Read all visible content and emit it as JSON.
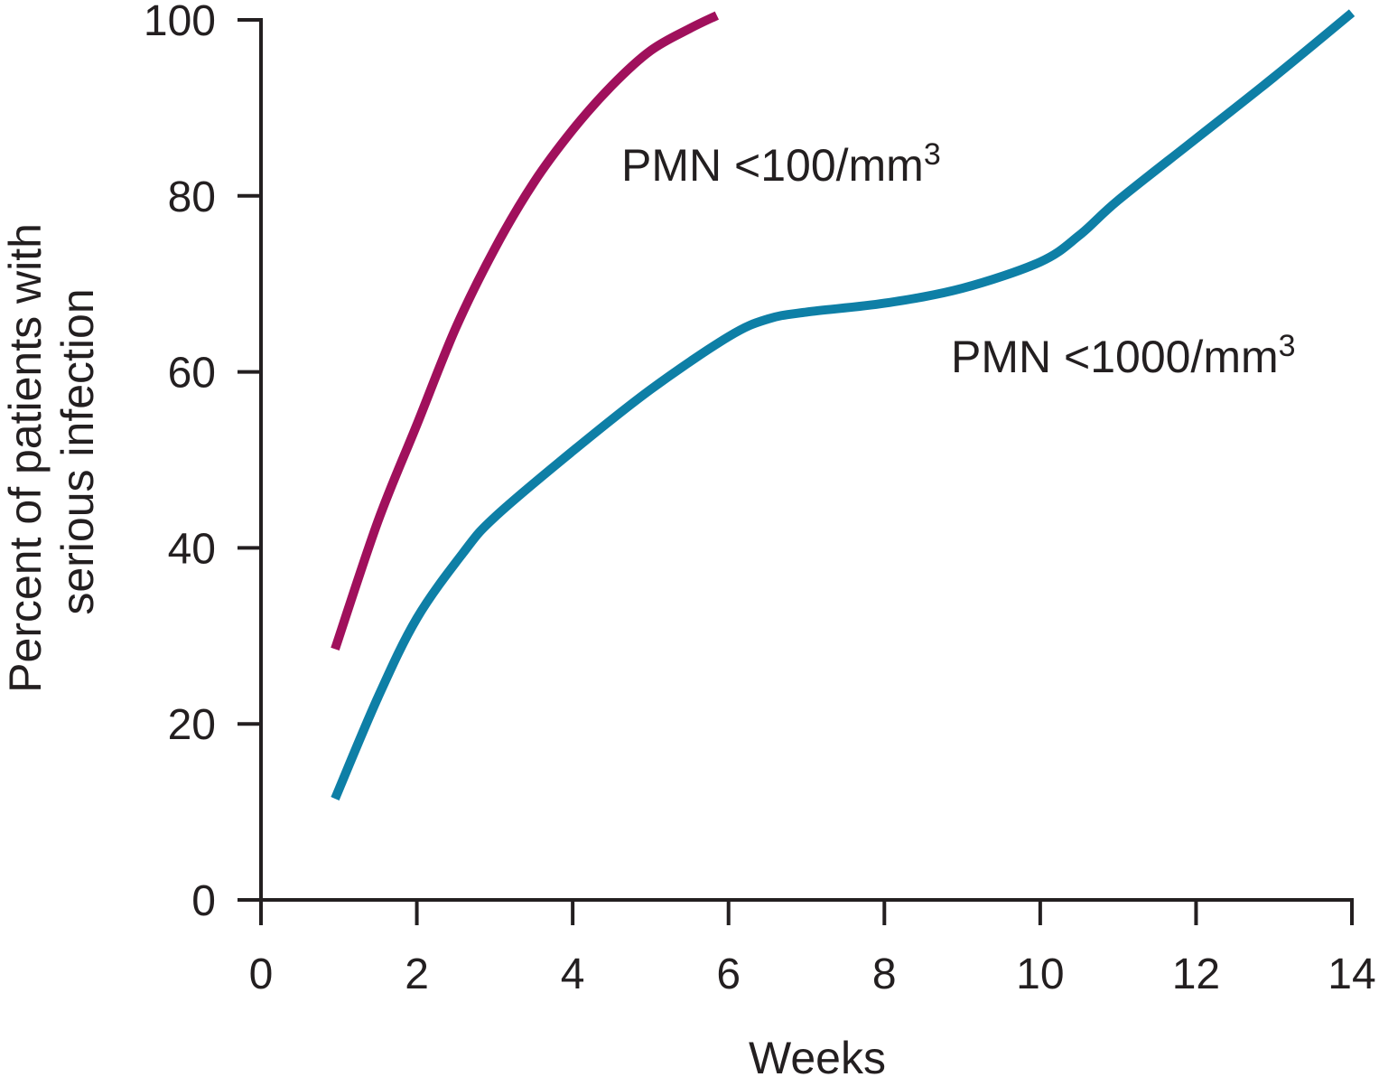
{
  "chart_data": {
    "type": "line",
    "title": "",
    "xlabel": "Weeks",
    "ylabel_lines": [
      "Percent of patients with",
      "serious infection"
    ],
    "xlim": [
      0,
      14
    ],
    "ylim": [
      0,
      100
    ],
    "xticks": [
      0,
      2,
      4,
      6,
      8,
      10,
      12,
      14
    ],
    "yticks": [
      0,
      20,
      40,
      60,
      80,
      100
    ],
    "grid": false,
    "series": [
      {
        "name": "PMN <100/mm3",
        "label_main": "PMN <100/mm",
        "label_sup": "3",
        "color": "#a0105c",
        "x": [
          0.95,
          1.5,
          2,
          2.5,
          3,
          3.5,
          4,
          4.5,
          5,
          5.5,
          5.85
        ],
        "y": [
          28.5,
          43,
          54,
          65,
          74,
          81.5,
          87.5,
          92.5,
          96.5,
          99,
          100.5
        ]
      },
      {
        "name": "PMN <1000/mm3",
        "label_main": "PMN <1000/mm",
        "label_sup": "3",
        "color": "#0e7fa6",
        "x": [
          0.95,
          1.5,
          2,
          2.6,
          3,
          4,
          5,
          6,
          6.5,
          7,
          8,
          9,
          10,
          10.5,
          11,
          12,
          13,
          14
        ],
        "y": [
          11.5,
          23,
          32,
          39.5,
          43.5,
          51,
          58,
          64,
          66,
          66.8,
          67.8,
          69.5,
          72.5,
          75.5,
          79.5,
          86.5,
          93.5,
          100.8
        ]
      }
    ]
  }
}
